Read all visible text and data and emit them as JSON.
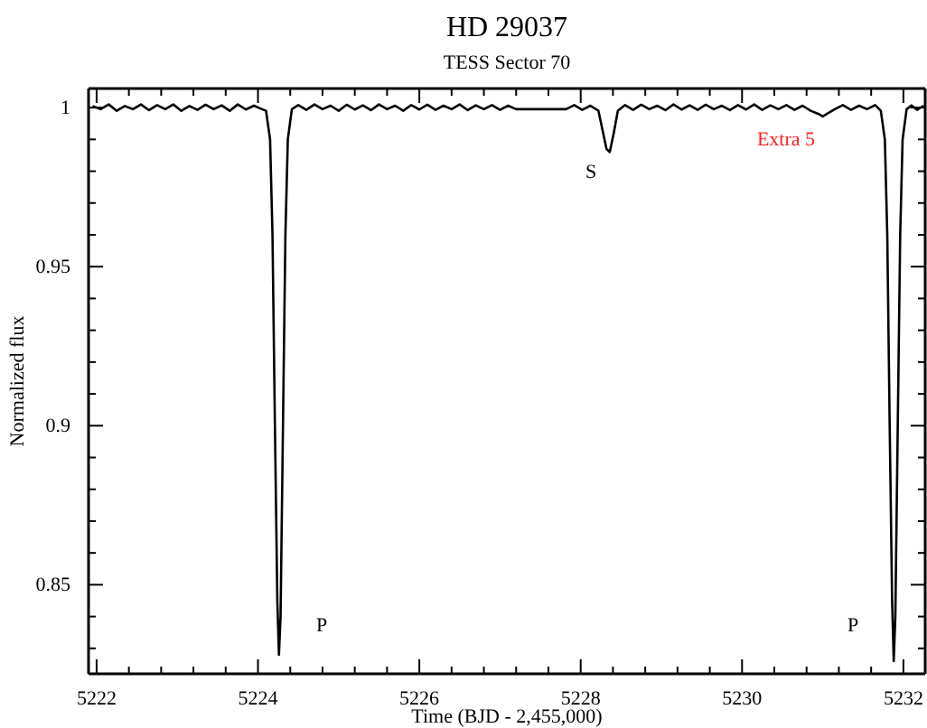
{
  "chart_data": {
    "type": "line",
    "title": "HD 29037",
    "subtitle": "TESS Sector 70",
    "xlabel": "Time (BJD - 2,455,000)",
    "ylabel": "Normalized flux",
    "xlim": [
      5221.9,
      5232.27
    ],
    "ylim": [
      0.822,
      1.006
    ],
    "xticks": [
      5222,
      {
        "value": 5222.4,
        "label": null
      },
      {
        "value": 5222.8,
        "label": null
      },
      {
        "value": 5223.2,
        "label": null
      },
      {
        "value": 5223.6,
        "label": null
      },
      5224,
      {
        "value": 5224.4,
        "label": null
      },
      {
        "value": 5224.8,
        "label": null
      },
      {
        "value": 5225.2,
        "label": null
      },
      {
        "value": 5225.6,
        "label": null
      },
      5226,
      {
        "value": 5226.4,
        "label": null
      },
      {
        "value": 5226.8,
        "label": null
      },
      {
        "value": 5227.2,
        "label": null
      },
      {
        "value": 5227.6,
        "label": null
      },
      5228,
      {
        "value": 5228.4,
        "label": null
      },
      {
        "value": 5228.8,
        "label": null
      },
      {
        "value": 5229.2,
        "label": null
      },
      {
        "value": 5229.6,
        "label": null
      },
      5230,
      {
        "value": 5230.4,
        "label": null
      },
      {
        "value": 5230.8,
        "label": null
      },
      {
        "value": 5231.2,
        "label": null
      },
      {
        "value": 5231.6,
        "label": null
      },
      5232
    ],
    "yticks": [
      {
        "value": 0.83,
        "label": null
      },
      {
        "value": 0.84,
        "label": null
      },
      0.85,
      {
        "value": 0.86,
        "label": null
      },
      {
        "value": 0.87,
        "label": null
      },
      {
        "value": 0.88,
        "label": null
      },
      {
        "value": 0.89,
        "label": null
      },
      0.9,
      {
        "value": 0.91,
        "label": null
      },
      {
        "value": 0.92,
        "label": null
      },
      {
        "value": 0.93,
        "label": null
      },
      {
        "value": 0.94,
        "label": null
      },
      0.95,
      {
        "value": 0.96,
        "label": null
      },
      {
        "value": 0.97,
        "label": null
      },
      {
        "value": 0.98,
        "label": null
      },
      {
        "value": 0.99,
        "label": null
      },
      1
    ],
    "grid": false,
    "marker": "none",
    "line_style": "solid",
    "series": [
      {
        "color": "#000000",
        "x": [
          5221.95,
          5222.05,
          5222.15,
          5222.25,
          5222.35,
          5222.45,
          5222.55,
          5222.65,
          5222.75,
          5222.85,
          5222.95,
          5223.05,
          5223.15,
          5223.25,
          5223.35,
          5223.45,
          5223.55,
          5223.65,
          5223.75,
          5223.85,
          5223.95,
          5224.05,
          5224.1,
          5224.15,
          5224.18,
          5224.21,
          5224.24,
          5224.26,
          5224.28,
          5224.31,
          5224.34,
          5224.37,
          5224.42,
          5224.5,
          5224.6,
          5224.7,
          5224.8,
          5224.9,
          5225.0,
          5225.1,
          5225.2,
          5225.3,
          5225.4,
          5225.5,
          5225.6,
          5225.7,
          5225.8,
          5225.9,
          5226.0,
          5226.1,
          5226.2,
          5226.3,
          5226.4,
          5226.5,
          5226.6,
          5226.7,
          5226.8,
          5226.9,
          5227.0,
          5227.1,
          5227.2,
          5227.82,
          5227.92,
          5228.02,
          5228.12,
          5228.22,
          5228.27,
          5228.32,
          5228.36,
          5228.41,
          5228.46,
          5228.55,
          5228.65,
          5228.75,
          5228.85,
          5228.95,
          5229.05,
          5229.15,
          5229.25,
          5229.35,
          5229.45,
          5229.55,
          5229.65,
          5229.75,
          5229.85,
          5229.95,
          5230.05,
          5230.15,
          5230.25,
          5230.35,
          5230.45,
          5230.55,
          5230.65,
          5230.75,
          5230.85,
          5230.95,
          5231.0,
          5231.05,
          5231.15,
          5231.25,
          5231.35,
          5231.45,
          5231.55,
          5231.65,
          5231.72,
          5231.77,
          5231.8,
          5231.83,
          5231.86,
          5231.88,
          5231.9,
          5231.93,
          5231.96,
          5231.99,
          5232.04,
          5232.1,
          5232.17,
          5232.25
        ],
        "values": [
          1.0005,
          0.9995,
          1.001,
          0.999,
          1.0005,
          0.9995,
          1.001,
          0.9992,
          1.0008,
          0.9995,
          1.001,
          0.999,
          1.0005,
          0.9993,
          1.0009,
          0.9995,
          1.0007,
          0.999,
          1.001,
          0.9994,
          1.0006,
          0.9995,
          0.999,
          0.99,
          0.96,
          0.9,
          0.845,
          0.828,
          0.84,
          0.9,
          0.96,
          0.99,
          0.9995,
          1.0008,
          0.9993,
          1.001,
          0.9995,
          1.0006,
          0.999,
          1.0009,
          0.9994,
          1.0007,
          0.9992,
          1.001,
          0.9995,
          1.0006,
          0.999,
          1.0008,
          0.9994,
          1.0009,
          0.9993,
          1.0006,
          0.9995,
          1.001,
          0.9992,
          1.0007,
          0.9995,
          1.0008,
          0.9993,
          1.0006,
          0.9995,
          0.9995,
          1.0008,
          0.9993,
          1.0006,
          0.999,
          0.993,
          0.987,
          0.986,
          0.992,
          0.999,
          1.0008,
          0.9993,
          1.0009,
          0.9995,
          1.0006,
          0.9992,
          1.001,
          0.9994,
          1.0007,
          0.9993,
          1.0009,
          0.9995,
          1.0006,
          0.9992,
          1.0008,
          0.9994,
          1.001,
          0.9993,
          1.0007,
          0.9995,
          1.0008,
          0.9993,
          1.0006,
          0.999,
          0.998,
          0.9972,
          0.998,
          0.9995,
          1.0008,
          0.9993,
          1.0006,
          0.9995,
          1.0008,
          0.999,
          0.99,
          0.96,
          0.9,
          0.845,
          0.826,
          0.84,
          0.9,
          0.96,
          0.99,
          0.9995,
          1.0007,
          0.9993,
          1.0006
        ]
      }
    ],
    "annotations": [
      "P",
      "S",
      "P",
      "Extra 5"
    ]
  }
}
